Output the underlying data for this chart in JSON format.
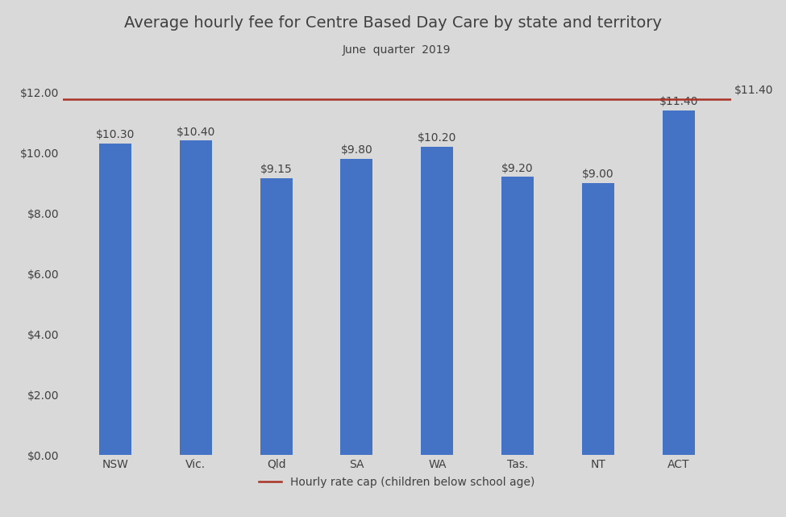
{
  "title": "Average hourly fee for Centre Based Day Care by state and territory",
  "subtitle": "June  quarter  2019",
  "categories": [
    "NSW",
    "Vic.",
    "Qld",
    "SA",
    "WA",
    "Tas.",
    "NT",
    "ACT"
  ],
  "values": [
    10.3,
    10.4,
    9.15,
    9.8,
    10.2,
    9.2,
    9.0,
    11.4
  ],
  "bar_color": "#4472C4",
  "background_color": "#D9D9D9",
  "hline_value": 11.77,
  "hline_color": "#A93226",
  "hline_label": "Hourly rate cap (children below school age)",
  "ylim": [
    0,
    13.0
  ],
  "yticks": [
    0,
    2,
    4,
    6,
    8,
    10,
    12
  ],
  "ytick_labels": [
    "$0.00",
    "$2.00",
    "$4.00",
    "$6.00",
    "$8.00",
    "$10.00",
    "$12.00"
  ],
  "bar_width": 0.4,
  "label_fontsize": 10,
  "title_fontsize": 14,
  "subtitle_fontsize": 10,
  "tick_fontsize": 10,
  "legend_fontsize": 10,
  "value_label_color": "#404040"
}
